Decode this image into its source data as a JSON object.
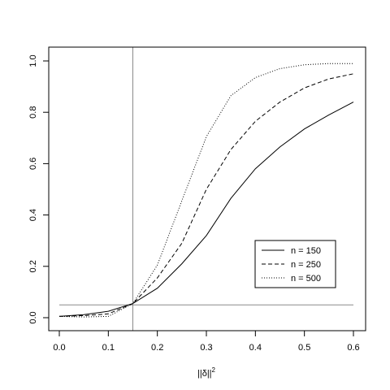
{
  "chart_data": {
    "type": "line",
    "title": "",
    "xlabel": "||δ||",
    "xlabel_superscript": "2",
    "ylabel": "",
    "xlim": [
      0.0,
      0.6
    ],
    "ylim": [
      0.0,
      1.0
    ],
    "x_ticks": [
      "0.0",
      "0.1",
      "0.2",
      "0.3",
      "0.4",
      "0.5",
      "0.6"
    ],
    "y_ticks": [
      "0.0",
      "0.2",
      "0.4",
      "0.6",
      "0.8",
      "1.0"
    ],
    "grid": false,
    "legend_position": "bottom-right",
    "reference_lines": {
      "vertical_x": 0.15,
      "horizontal_y": 0.05,
      "color": "#8a8a8a"
    },
    "series": [
      {
        "name": "n = 150",
        "linestyle": "solid",
        "x": [
          0.0,
          0.05,
          0.1,
          0.15,
          0.2,
          0.25,
          0.3,
          0.35,
          0.4,
          0.45,
          0.5,
          0.55,
          0.6
        ],
        "values": [
          0.005,
          0.012,
          0.025,
          0.055,
          0.115,
          0.21,
          0.32,
          0.465,
          0.58,
          0.665,
          0.735,
          0.79,
          0.84
        ]
      },
      {
        "name": "n = 250",
        "linestyle": "dashed",
        "x": [
          0.0,
          0.05,
          0.1,
          0.15,
          0.2,
          0.25,
          0.3,
          0.35,
          0.4,
          0.45,
          0.5,
          0.55,
          0.6
        ],
        "values": [
          0.005,
          0.008,
          0.015,
          0.055,
          0.155,
          0.29,
          0.5,
          0.655,
          0.765,
          0.84,
          0.895,
          0.93,
          0.95
        ]
      },
      {
        "name": "n = 500",
        "linestyle": "dotted",
        "x": [
          0.0,
          0.05,
          0.1,
          0.15,
          0.2,
          0.25,
          0.3,
          0.35,
          0.4,
          0.45,
          0.5,
          0.55,
          0.6
        ],
        "values": [
          0.005,
          0.003,
          0.005,
          0.055,
          0.205,
          0.455,
          0.705,
          0.865,
          0.935,
          0.97,
          0.985,
          0.99,
          0.99
        ]
      }
    ]
  }
}
